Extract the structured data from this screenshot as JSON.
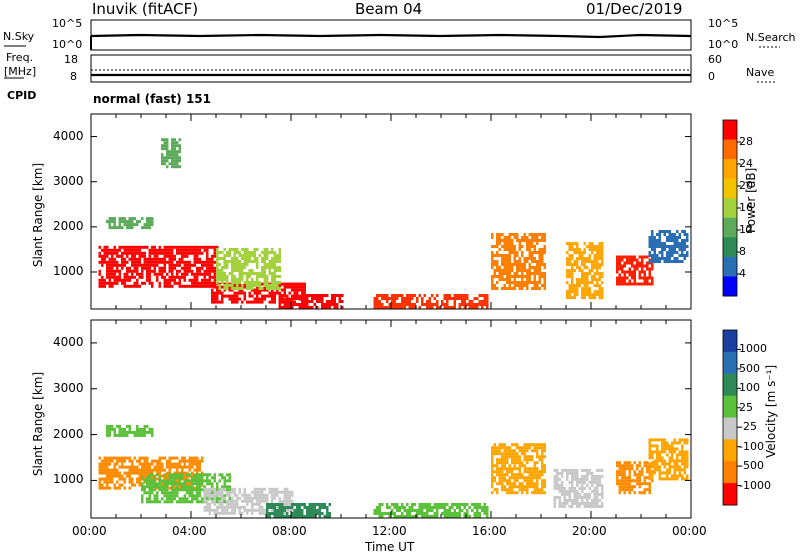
{
  "header": {
    "title_left": "Inuvik (fitACF)",
    "title_center": "Beam 04",
    "title_right": "01/Dec/2019"
  },
  "status_panels": {
    "nsky_label": "N.Sky",
    "nsearch_label": "N.Search",
    "nsky_ticks": [
      "10^5",
      "10^0"
    ],
    "nsearch_ticks": [
      "10^5",
      "10^0"
    ],
    "freq_label_line1": "Freq.",
    "freq_label_line2": "[MHz]",
    "freq_ticks": [
      "18",
      "8"
    ],
    "nave_label": "Nave",
    "nave_ticks": [
      "60",
      "0"
    ],
    "cpid_label": "CPID",
    "cpid_text": "normal (fast) 151"
  },
  "chart_data": [
    {
      "type": "heatmap",
      "name": "power",
      "ylabel": "Slant Range [km]",
      "yticks": [
        "4000",
        "3000",
        "2000",
        "1000"
      ],
      "ylim": [
        180,
        4500
      ],
      "xlim_hours": [
        0,
        24
      ],
      "colorbar": {
        "label": "Power [dB]",
        "ticks": [
          "28",
          "24",
          "20",
          "16",
          "12",
          "8",
          "4"
        ],
        "colors": [
          "#ff0000",
          "#ff6a00",
          "#ffa500",
          "#f2c300",
          "#a4d23e",
          "#5bab5b",
          "#2e8b57",
          "#2a6eb3",
          "#0000ff"
        ]
      },
      "regions": [
        {
          "t": [
            0.3,
            5.0
          ],
          "r": [
            650,
            1550
          ],
          "color": "#ff0000"
        },
        {
          "t": [
            4.8,
            8.5
          ],
          "r": [
            300,
            700
          ],
          "color": "#ff0000"
        },
        {
          "t": [
            7.5,
            10.0
          ],
          "r": [
            180,
            450
          ],
          "color": "#ff0000"
        },
        {
          "t": [
            11.3,
            15.8
          ],
          "r": [
            180,
            450
          ],
          "color": "#ff3300"
        },
        {
          "t": [
            16.0,
            18.2
          ],
          "r": [
            600,
            1800
          ],
          "color": "#ff7f00"
        },
        {
          "t": [
            19.0,
            20.5
          ],
          "r": [
            400,
            1600
          ],
          "color": "#ffa500"
        },
        {
          "t": [
            21.0,
            22.5
          ],
          "r": [
            700,
            1300
          ],
          "color": "#ff2000"
        },
        {
          "t": [
            0.6,
            2.5
          ],
          "r": [
            1950,
            2200
          ],
          "color": "#5bab5b"
        },
        {
          "t": [
            2.8,
            3.6
          ],
          "r": [
            3300,
            3900
          ],
          "color": "#5bab5b"
        },
        {
          "t": [
            22.3,
            23.9
          ],
          "r": [
            1200,
            1900
          ],
          "color": "#2a6eb3"
        },
        {
          "t": [
            5.0,
            7.5
          ],
          "r": [
            600,
            1500
          ],
          "color": "#a4d23e"
        }
      ]
    },
    {
      "type": "heatmap",
      "name": "velocity",
      "ylabel": "Slant Range [km]",
      "yticks": [
        "4000",
        "3000",
        "2000",
        "1000"
      ],
      "ylim": [
        180,
        4500
      ],
      "xlim_hours": [
        0,
        24
      ],
      "xticks": [
        "00:00",
        "04:00",
        "08:00",
        "12:00",
        "16:00",
        "20:00",
        "00:00"
      ],
      "xlabel": "Time UT",
      "colorbar": {
        "label": "Velocity [m s⁻¹]",
        "ticks": [
          "1000",
          "500",
          "100",
          "25",
          "-25",
          "-100",
          "-500",
          "-1000"
        ],
        "colors": [
          "#1a3fa0",
          "#2a6eb3",
          "#2e8b57",
          "#5bc03a",
          "#c8c8c8",
          "#ffa500",
          "#ff7f00",
          "#ff0000"
        ]
      },
      "regions": [
        {
          "t": [
            0.3,
            4.5
          ],
          "r": [
            800,
            1500
          ],
          "color": "#ff8c00"
        },
        {
          "t": [
            2.0,
            5.5
          ],
          "r": [
            500,
            1100
          ],
          "color": "#5bc03a"
        },
        {
          "t": [
            4.5,
            8.0
          ],
          "r": [
            250,
            800
          ],
          "color": "#c8c8c8"
        },
        {
          "t": [
            7.0,
            9.5
          ],
          "r": [
            180,
            500
          ],
          "color": "#2e8b57"
        },
        {
          "t": [
            11.3,
            15.8
          ],
          "r": [
            180,
            450
          ],
          "color": "#5bc03a"
        },
        {
          "t": [
            16.0,
            18.2
          ],
          "r": [
            700,
            1800
          ],
          "color": "#ffa500"
        },
        {
          "t": [
            18.5,
            20.5
          ],
          "r": [
            400,
            1200
          ],
          "color": "#c8c8c8"
        },
        {
          "t": [
            21.0,
            22.5
          ],
          "r": [
            700,
            1400
          ],
          "color": "#ff8c00"
        },
        {
          "t": [
            22.3,
            23.9
          ],
          "r": [
            1000,
            1900
          ],
          "color": "#ffa500"
        },
        {
          "t": [
            0.6,
            2.5
          ],
          "r": [
            1950,
            2200
          ],
          "color": "#5bc03a"
        }
      ]
    }
  ]
}
